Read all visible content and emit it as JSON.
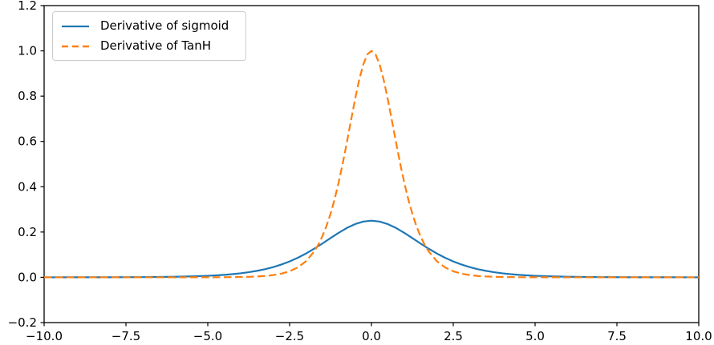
{
  "figure": {
    "background": "#ffffff",
    "spine_color": "#000000",
    "tick_color": "#000000",
    "tick_label_color": "#000000"
  },
  "legend": {
    "position": "upper left",
    "border_color": "#cccccc"
  },
  "chart_data": {
    "type": "line",
    "title": "",
    "xlabel": "",
    "ylabel": "",
    "grid": false,
    "legend_position": "upper left",
    "xlim": [
      -10,
      10
    ],
    "ylim": [
      -0.2,
      1.2
    ],
    "xticks": {
      "values": [
        -10,
        -7.5,
        -5,
        -2.5,
        0,
        2.5,
        5,
        7.5,
        10
      ],
      "labels": [
        "−10.0",
        "−7.5",
        "−5.0",
        "−2.5",
        "0.0",
        "2.5",
        "5.0",
        "7.5",
        "10.0"
      ]
    },
    "yticks": {
      "values": [
        -0.2,
        0,
        0.2,
        0.4,
        0.6,
        0.8,
        1.0,
        1.2
      ],
      "labels": [
        "−0.2",
        "0.0",
        "0.2",
        "0.4",
        "0.6",
        "0.8",
        "1.0",
        "1.2"
      ]
    },
    "series": [
      {
        "name": "Derivative of sigmoid",
        "color": "#1f77b4",
        "line_style": "solid",
        "peak": [
          0,
          0.25
        ],
        "points": [
          [
            -10,
            0
          ],
          [
            -9,
            0.0001
          ],
          [
            -8,
            0.0003
          ],
          [
            -7,
            0.0009
          ],
          [
            -6.5,
            0.0015
          ],
          [
            -6,
            0.0025
          ],
          [
            -5.5,
            0.0041
          ],
          [
            -5,
            0.0066
          ],
          [
            -4.75,
            0.0085
          ],
          [
            -4.5,
            0.0109
          ],
          [
            -4.25,
            0.0139
          ],
          [
            -4,
            0.0177
          ],
          [
            -3.75,
            0.0225
          ],
          [
            -3.5,
            0.0285
          ],
          [
            -3.25,
            0.0359
          ],
          [
            -3,
            0.0452
          ],
          [
            -2.75,
            0.0565
          ],
          [
            -2.5,
            0.0701
          ],
          [
            -2.25,
            0.0863
          ],
          [
            -2,
            0.105
          ],
          [
            -1.75,
            0.1261
          ],
          [
            -1.5,
            0.1491
          ],
          [
            -1.25,
            0.1731
          ],
          [
            -1,
            0.1966
          ],
          [
            -0.75,
            0.2179
          ],
          [
            -0.5,
            0.235
          ],
          [
            -0.25,
            0.2461
          ],
          [
            0,
            0.25
          ],
          [
            0.25,
            0.2461
          ],
          [
            0.5,
            0.235
          ],
          [
            0.75,
            0.2179
          ],
          [
            1,
            0.1966
          ],
          [
            1.25,
            0.1731
          ],
          [
            1.5,
            0.1491
          ],
          [
            1.75,
            0.1261
          ],
          [
            2,
            0.105
          ],
          [
            2.25,
            0.0863
          ],
          [
            2.5,
            0.0701
          ],
          [
            2.75,
            0.0565
          ],
          [
            3,
            0.0452
          ],
          [
            3.25,
            0.0359
          ],
          [
            3.5,
            0.0285
          ],
          [
            3.75,
            0.0225
          ],
          [
            4,
            0.0177
          ],
          [
            4.25,
            0.0139
          ],
          [
            4.5,
            0.0109
          ],
          [
            4.75,
            0.0085
          ],
          [
            5,
            0.0066
          ],
          [
            5.5,
            0.0041
          ],
          [
            6,
            0.0025
          ],
          [
            6.5,
            0.0015
          ],
          [
            7,
            0.0009
          ],
          [
            8,
            0.0003
          ],
          [
            9,
            0.0001
          ],
          [
            10,
            0
          ]
        ]
      },
      {
        "name": "Derivative of TanH",
        "color": "#ff7f0e",
        "line_style": "dashed",
        "peak": [
          0,
          1.0
        ],
        "points": [
          [
            -10,
            0
          ],
          [
            -9,
            0
          ],
          [
            -8,
            0
          ],
          [
            -7,
            0
          ],
          [
            -6,
            0
          ],
          [
            -5,
            0.0002
          ],
          [
            -4.5,
            0.0005
          ],
          [
            -4,
            0.0013
          ],
          [
            -3.75,
            0.0022
          ],
          [
            -3.5,
            0.0036
          ],
          [
            -3.25,
            0.006
          ],
          [
            -3,
            0.0099
          ],
          [
            -2.75,
            0.0162
          ],
          [
            -2.5,
            0.0266
          ],
          [
            -2.25,
            0.0435
          ],
          [
            -2,
            0.0707
          ],
          [
            -1.75,
            0.1138
          ],
          [
            -1.625,
            0.1437
          ],
          [
            -1.5,
            0.1807
          ],
          [
            -1.375,
            0.2259
          ],
          [
            -1.25,
            0.2804
          ],
          [
            -1.125,
            0.345
          ],
          [
            -1,
            0.42
          ],
          [
            -0.875,
            0.5045
          ],
          [
            -0.75,
            0.5966
          ],
          [
            -0.625,
            0.6924
          ],
          [
            -0.5,
            0.7864
          ],
          [
            -0.375,
            0.8716
          ],
          [
            -0.25,
            0.94
          ],
          [
            -0.125,
            0.9845
          ],
          [
            0,
            1
          ],
          [
            0.125,
            0.9845
          ],
          [
            0.25,
            0.94
          ],
          [
            0.375,
            0.8716
          ],
          [
            0.5,
            0.7864
          ],
          [
            0.625,
            0.6924
          ],
          [
            0.75,
            0.5966
          ],
          [
            0.875,
            0.5045
          ],
          [
            1,
            0.42
          ],
          [
            1.125,
            0.345
          ],
          [
            1.25,
            0.2804
          ],
          [
            1.375,
            0.2259
          ],
          [
            1.5,
            0.1807
          ],
          [
            1.625,
            0.1437
          ],
          [
            1.75,
            0.1138
          ],
          [
            2,
            0.0707
          ],
          [
            2.25,
            0.0435
          ],
          [
            2.5,
            0.0266
          ],
          [
            2.75,
            0.0162
          ],
          [
            3,
            0.0099
          ],
          [
            3.25,
            0.006
          ],
          [
            3.5,
            0.0036
          ],
          [
            3.75,
            0.0022
          ],
          [
            4,
            0.0013
          ],
          [
            4.5,
            0.0005
          ],
          [
            5,
            0.0002
          ],
          [
            6,
            0
          ],
          [
            7,
            0
          ],
          [
            8,
            0
          ],
          [
            9,
            0
          ],
          [
            10,
            0
          ]
        ]
      }
    ]
  }
}
